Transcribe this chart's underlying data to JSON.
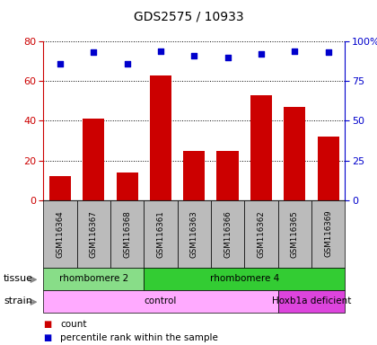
{
  "title": "GDS2575 / 10933",
  "samples": [
    "GSM116364",
    "GSM116367",
    "GSM116368",
    "GSM116361",
    "GSM116363",
    "GSM116366",
    "GSM116362",
    "GSM116365",
    "GSM116369"
  ],
  "counts": [
    12,
    41,
    14,
    63,
    25,
    25,
    53,
    47,
    32
  ],
  "percentiles": [
    86,
    93,
    86,
    94,
    91,
    90,
    92,
    94,
    93
  ],
  "ylim_left": [
    0,
    80
  ],
  "ylim_right": [
    0,
    100
  ],
  "yticks_left": [
    0,
    20,
    40,
    60,
    80
  ],
  "yticks_right": [
    0,
    25,
    50,
    75,
    100
  ],
  "yticklabels_right": [
    "0",
    "25",
    "50",
    "75",
    "100%"
  ],
  "bar_color": "#cc0000",
  "dot_color": "#0000cc",
  "sample_bg_color": "#bbbbbb",
  "tissue_groups": [
    {
      "label": "rhombomere 2",
      "start": 0,
      "end": 3,
      "color": "#88dd88"
    },
    {
      "label": "rhombomere 4",
      "start": 3,
      "end": 9,
      "color": "#33cc33"
    }
  ],
  "strain_groups": [
    {
      "label": "control",
      "start": 0,
      "end": 7,
      "color": "#ffaaff"
    },
    {
      "label": "Hoxb1a deficient",
      "start": 7,
      "end": 9,
      "color": "#dd44dd"
    }
  ],
  "left_tick_color": "#cc0000",
  "right_tick_color": "#0000cc",
  "title_color": "#000000",
  "background_color": "#ffffff",
  "legend_items": [
    {
      "label": "count",
      "color": "#cc0000",
      "marker": "s"
    },
    {
      "label": "percentile rank within the sample",
      "color": "#0000cc",
      "marker": "s"
    }
  ]
}
